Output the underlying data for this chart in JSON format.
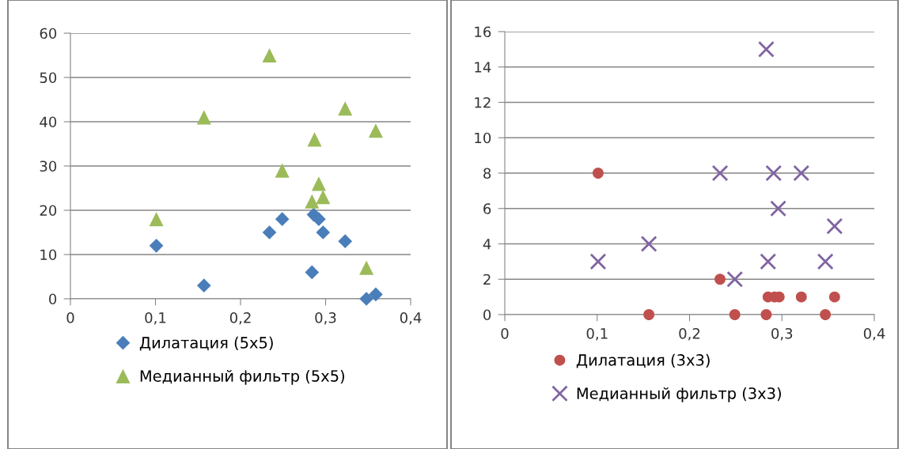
{
  "chart_data": [
    {
      "type": "scatter",
      "xlim": [
        0,
        0.4
      ],
      "xticks": [
        {
          "value": 0,
          "label": "0"
        },
        {
          "value": 0.1,
          "label": "0,1"
        },
        {
          "value": 0.2,
          "label": "0,2"
        },
        {
          "value": 0.3,
          "label": "0,3"
        },
        {
          "value": 0.4,
          "label": "0,4"
        }
      ],
      "ylim": [
        0,
        60
      ],
      "yticks": [
        0,
        10,
        20,
        30,
        40,
        50,
        60
      ],
      "grid": "y",
      "legend": "bottom",
      "series": [
        {
          "name": "Дилатация (5x5)",
          "color": "#4a7ebb",
          "marker": "diamond",
          "x": [
            0.101,
            0.157,
            0.234,
            0.249,
            0.286,
            0.292,
            0.297,
            0.323,
            0.284,
            0.348,
            0.359
          ],
          "values": [
            12,
            3,
            15,
            18,
            19,
            18,
            15,
            13,
            6,
            0,
            1
          ]
        },
        {
          "name": "Медианный фильтр (5x5)",
          "color": "#9bbb59",
          "marker": "triangle",
          "x": [
            0.101,
            0.157,
            0.234,
            0.249,
            0.287,
            0.292,
            0.297,
            0.284,
            0.323,
            0.359,
            0.348
          ],
          "values": [
            18,
            41,
            55,
            29,
            36,
            26,
            23,
            22,
            43,
            38,
            7
          ]
        }
      ]
    },
    {
      "type": "scatter",
      "xlim": [
        0,
        0.4
      ],
      "xticks": [
        {
          "value": 0,
          "label": "0"
        },
        {
          "value": 0.1,
          "label": "0,1"
        },
        {
          "value": 0.2,
          "label": "0,2"
        },
        {
          "value": 0.3,
          "label": "0,3"
        },
        {
          "value": 0.4,
          "label": "0,4"
        }
      ],
      "ylim": [
        0,
        16
      ],
      "yticks": [
        0,
        2,
        4,
        6,
        8,
        10,
        12,
        14,
        16
      ],
      "grid": "y",
      "legend": "bottom",
      "series": [
        {
          "name": "Дилатация (3x3)",
          "color": "#c0504d",
          "marker": "circle",
          "x": [
            0.101,
            0.156,
            0.233,
            0.249,
            0.283,
            0.285,
            0.292,
            0.297,
            0.321,
            0.347,
            0.357
          ],
          "values": [
            8,
            0,
            2,
            0,
            0,
            1,
            1,
            1,
            1,
            0,
            1
          ]
        },
        {
          "name": "Медианный фильтр (3x3)",
          "color": "#8064a2",
          "marker": "cross",
          "x": [
            0.101,
            0.156,
            0.233,
            0.249,
            0.283,
            0.285,
            0.291,
            0.296,
            0.321,
            0.347,
            0.357
          ],
          "values": [
            3,
            4,
            8,
            2,
            15,
            3,
            8,
            6,
            8,
            3,
            5
          ]
        }
      ]
    }
  ]
}
